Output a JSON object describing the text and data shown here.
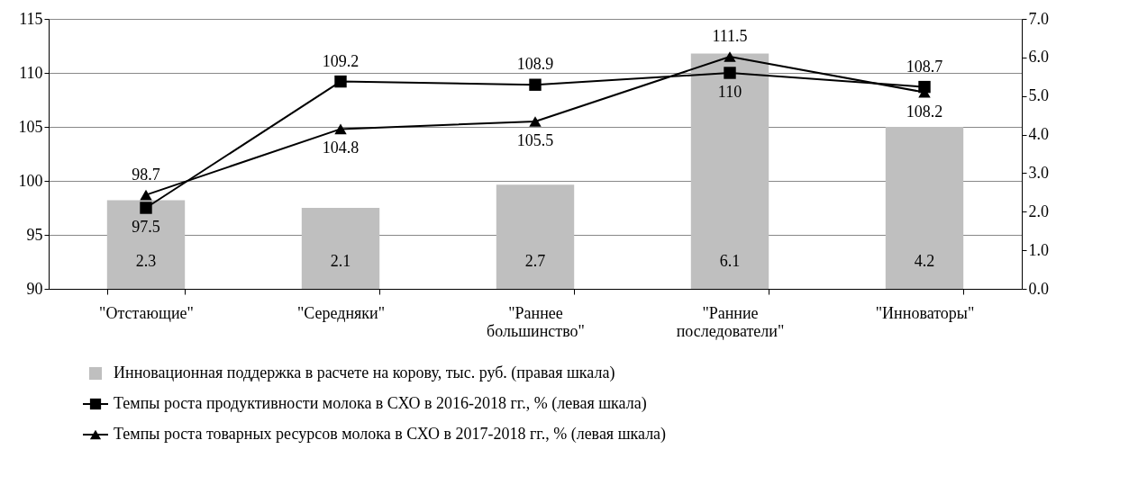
{
  "chart_data": {
    "type": "bar",
    "categories": [
      "\"Отстающие\"",
      "\"Середняки\"",
      "\"Раннее\nбольшинство\"",
      "\"Ранние\nпоследователи\"",
      "\"Инноваторы\""
    ],
    "series": [
      {
        "name": "Инновационная поддержка в расчете на корову, тыс. руб. (правая шкала)",
        "axis": "y2",
        "color": "#bfbfbf",
        "values": [
          2.3,
          2.1,
          2.7,
          6.1,
          4.2
        ]
      },
      {
        "name": "Темпы роста продуктивности молока в СХО в 2016-2018 гг., % (левая шкала)",
        "type": "line",
        "marker": "square",
        "color": "#000000",
        "values": [
          97.5,
          109.2,
          108.9,
          110,
          108.7
        ]
      },
      {
        "name": "Темпы роста товарных ресурсов молока в СХО в 2017-2018  гг., % (левая шкала)",
        "type": "line",
        "marker": "triangle",
        "color": "#000000",
        "values": [
          98.7,
          104.8,
          105.5,
          111.5,
          108.2
        ]
      }
    ],
    "ylim": [
      90,
      115
    ],
    "yticks": [
      90,
      95,
      100,
      105,
      110,
      115
    ],
    "y2lim": [
      0,
      7
    ],
    "y2ticks": [
      {
        "value": 0,
        "label": "0.0"
      },
      {
        "value": 1,
        "label": "1.0"
      },
      {
        "value": 2,
        "label": "2.0"
      },
      {
        "value": 3,
        "label": "3.0"
      },
      {
        "value": 4,
        "label": "4.0"
      },
      {
        "value": 5,
        "label": "5.0"
      },
      {
        "value": 6,
        "label": "6.0"
      },
      {
        "value": 7,
        "label": "7.0"
      }
    ],
    "grid": "y",
    "legend": "bottom",
    "data_labels": true
  }
}
